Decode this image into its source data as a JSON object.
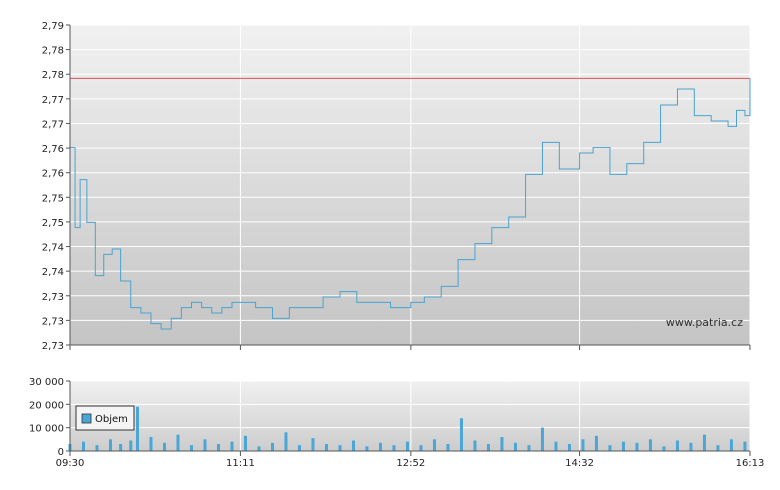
{
  "watermark": "www.patria.cz",
  "legend": {
    "label": "Objem"
  },
  "colors": {
    "line": "#4aa3cf",
    "reference": "#e05050",
    "volume": "#49a6d6",
    "grid": "#ffffff"
  },
  "chart_data": [
    {
      "type": "line",
      "name": "price",
      "y_tick_labels": [
        "2,73",
        "2,73",
        "2,73",
        "2,74",
        "2,74",
        "2,75",
        "2,75",
        "2,76",
        "2,76",
        "2,77",
        "2,77",
        "2,78",
        "2,78",
        "2,79"
      ],
      "ylim": [
        2.73,
        2.79
      ],
      "xlim": [
        "09:30",
        "16:13"
      ],
      "reference_line": 2.78,
      "grid": true,
      "x": [
        "09:30",
        "09:33",
        "09:36",
        "09:40",
        "09:45",
        "09:50",
        "09:55",
        "10:00",
        "10:06",
        "10:12",
        "10:18",
        "10:24",
        "10:30",
        "10:36",
        "10:42",
        "10:48",
        "10:54",
        "11:00",
        "11:06",
        "11:11",
        "11:20",
        "11:30",
        "11:40",
        "11:50",
        "12:00",
        "12:10",
        "12:20",
        "12:30",
        "12:40",
        "12:52",
        "13:00",
        "13:10",
        "13:20",
        "13:30",
        "13:40",
        "13:50",
        "14:00",
        "14:10",
        "14:20",
        "14:32",
        "14:40",
        "14:50",
        "15:00",
        "15:10",
        "15:20",
        "15:30",
        "15:40",
        "15:50",
        "16:00",
        "16:05",
        "16:10",
        "16:13"
      ],
      "y": [
        2.767,
        2.752,
        2.761,
        2.753,
        2.743,
        2.747,
        2.748,
        2.742,
        2.737,
        2.736,
        2.734,
        2.733,
        2.735,
        2.737,
        2.738,
        2.737,
        2.736,
        2.737,
        2.738,
        2.738,
        2.737,
        2.735,
        2.737,
        2.737,
        2.739,
        2.74,
        2.738,
        2.738,
        2.737,
        2.738,
        2.739,
        2.741,
        2.746,
        2.749,
        2.752,
        2.754,
        2.762,
        2.768,
        2.763,
        2.766,
        2.767,
        2.762,
        2.764,
        2.768,
        2.775,
        2.778,
        2.773,
        2.772,
        2.771,
        2.774,
        2.773,
        2.78
      ]
    },
    {
      "type": "bar",
      "name": "Objem",
      "y_tick_labels": [
        "0",
        "10 000",
        "20 000",
        "30 000"
      ],
      "ylim": [
        0,
        30000
      ],
      "grid": true,
      "x_tick_labels": [
        "09:30",
        "11:11",
        "12:52",
        "14:32",
        "16:13"
      ],
      "x": [
        "09:30",
        "09:38",
        "09:46",
        "09:54",
        "10:00",
        "10:06",
        "10:10",
        "10:18",
        "10:26",
        "10:34",
        "10:42",
        "10:50",
        "10:58",
        "11:06",
        "11:14",
        "11:22",
        "11:30",
        "11:38",
        "11:46",
        "11:54",
        "12:02",
        "12:10",
        "12:18",
        "12:26",
        "12:34",
        "12:42",
        "12:50",
        "12:58",
        "13:06",
        "13:14",
        "13:22",
        "13:30",
        "13:38",
        "13:46",
        "13:54",
        "14:02",
        "14:10",
        "14:18",
        "14:26",
        "14:34",
        "14:42",
        "14:50",
        "14:58",
        "15:06",
        "15:14",
        "15:22",
        "15:30",
        "15:38",
        "15:46",
        "15:54",
        "16:02",
        "16:10"
      ],
      "values": [
        3000,
        4000,
        2500,
        5000,
        3000,
        4500,
        19000,
        6000,
        3500,
        7000,
        2500,
        5000,
        3000,
        4000,
        6500,
        2000,
        3500,
        8000,
        2500,
        5500,
        3000,
        2500,
        4500,
        2000,
        3500,
        2500,
        4000,
        2500,
        5000,
        3000,
        14000,
        4500,
        3000,
        6000,
        3500,
        2500,
        10000,
        4000,
        3000,
        5000,
        6500,
        2500,
        4000,
        3500,
        5000,
        2000,
        4500,
        3500,
        7000,
        2500,
        5000,
        4000
      ]
    }
  ]
}
